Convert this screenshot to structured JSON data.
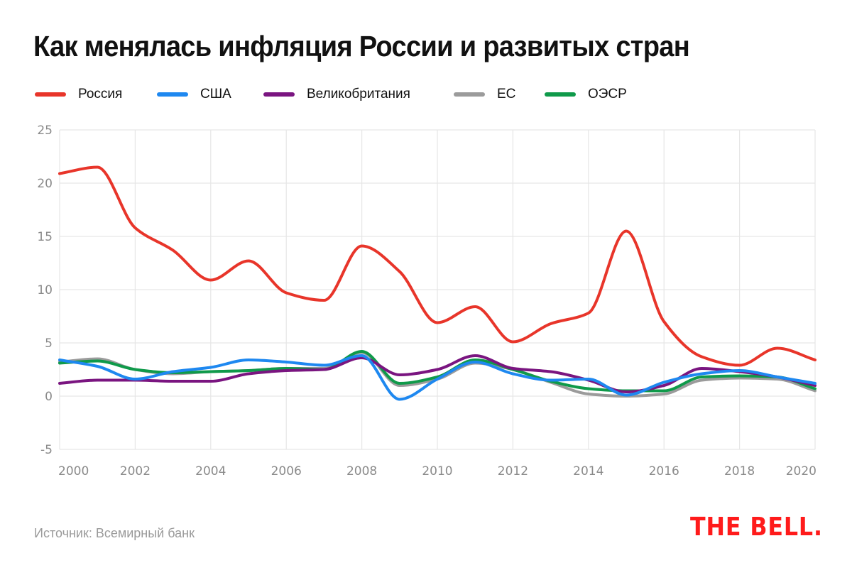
{
  "title": "Как менялась инфляция России и развитых стран",
  "source": "Источник: Всемирный банк",
  "logo_text": "THE BELL.",
  "colors": {
    "russia": "#e8352a",
    "usa": "#1e88f0",
    "uk": "#7a1580",
    "eu": "#9b9b9b",
    "oecd": "#0f9a4a",
    "grid": "#e6e6e6",
    "logo": "#ff1b1b"
  },
  "chart_data": {
    "type": "line",
    "title": "Как менялась инфляция России и развитых стран",
    "xlabel": "",
    "ylabel": "",
    "x": [
      2000,
      2001,
      2002,
      2003,
      2004,
      2005,
      2006,
      2007,
      2008,
      2009,
      2010,
      2011,
      2012,
      2013,
      2014,
      2015,
      2016,
      2017,
      2018,
      2019,
      2020
    ],
    "xlim": [
      2000,
      2020
    ],
    "ylim": [
      -5,
      25
    ],
    "x_ticks": [
      "2000",
      "2002",
      "2004",
      "2006",
      "2008",
      "2010",
      "2012",
      "2014",
      "2016",
      "2018",
      "2020"
    ],
    "y_ticks": [
      "25",
      "20",
      "15",
      "10",
      "5",
      "0",
      "-5"
    ],
    "grid": true,
    "legend_position": "top-left",
    "series": [
      {
        "name": "Россия",
        "color_key": "russia",
        "values": [
          20.9,
          21.5,
          15.8,
          13.7,
          10.9,
          12.7,
          9.7,
          9.0,
          14.1,
          11.7,
          6.9,
          8.4,
          5.1,
          6.8,
          7.8,
          15.5,
          7.0,
          3.7,
          2.9,
          4.5,
          3.4
        ]
      },
      {
        "name": "США",
        "color_key": "usa",
        "values": [
          3.4,
          2.8,
          1.6,
          2.3,
          2.7,
          3.4,
          3.2,
          2.9,
          3.8,
          -0.3,
          1.6,
          3.2,
          2.1,
          1.5,
          1.6,
          0.1,
          1.3,
          2.1,
          2.4,
          1.8,
          1.2
        ]
      },
      {
        "name": "Великобритания",
        "color_key": "uk",
        "values": [
          1.2,
          1.5,
          1.5,
          1.4,
          1.4,
          2.1,
          2.4,
          2.5,
          3.6,
          2.0,
          2.5,
          3.8,
          2.6,
          2.3,
          1.5,
          0.4,
          1.0,
          2.6,
          2.3,
          1.8,
          1.0
        ]
      },
      {
        "name": "ЕС",
        "color_key": "eu",
        "values": [
          3.2,
          3.5,
          2.5,
          2.1,
          2.3,
          2.4,
          2.6,
          2.6,
          4.1,
          1.0,
          1.6,
          3.1,
          2.5,
          1.3,
          0.2,
          0.0,
          0.2,
          1.5,
          1.7,
          1.6,
          0.5
        ]
      },
      {
        "name": "ОЭСР",
        "color_key": "oecd",
        "values": [
          3.1,
          3.3,
          2.5,
          2.2,
          2.3,
          2.4,
          2.6,
          2.5,
          4.2,
          1.2,
          1.8,
          3.4,
          2.5,
          1.4,
          0.7,
          0.5,
          0.5,
          1.8,
          1.9,
          1.8,
          0.7
        ]
      }
    ]
  }
}
